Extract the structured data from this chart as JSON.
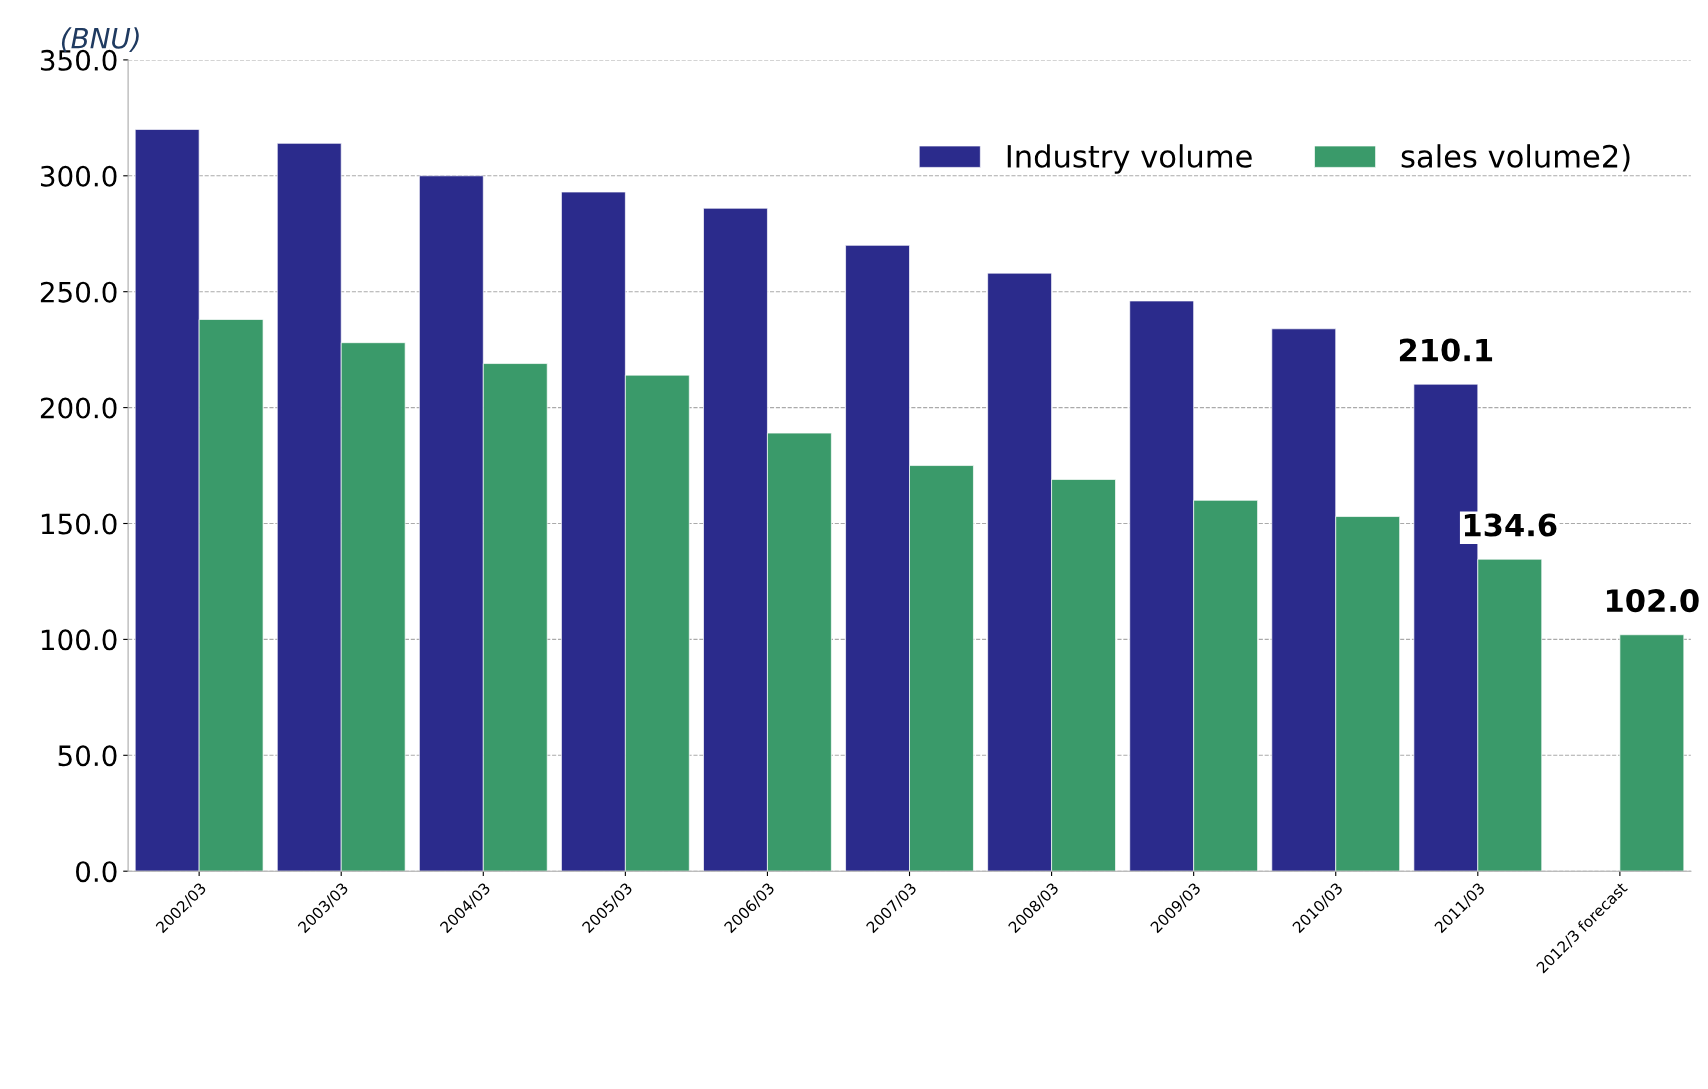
{
  "chart_data": {
    "type": "bar",
    "ylabel": "(BNU)",
    "categories": [
      "2002/03",
      "2003/03",
      "2004/03",
      "2005/03",
      "2006/03",
      "2007/03",
      "2008/03",
      "2009/03",
      "2010/03",
      "2011/03",
      "2012/3 forecast"
    ],
    "series": [
      {
        "name": "Industry volume",
        "color": "#2b2b8c",
        "values": [
          320,
          314,
          300,
          293,
          286,
          270,
          258,
          246,
          234,
          210.1,
          null
        ],
        "value_labels": [
          null,
          null,
          null,
          null,
          null,
          null,
          null,
          null,
          null,
          "210.1",
          null
        ]
      },
      {
        "name": "sales volume2)",
        "color": "#3a9a6a",
        "values": [
          238,
          228,
          219,
          214,
          189,
          175,
          169,
          160,
          153,
          134.6,
          102.0
        ],
        "value_labels": [
          null,
          null,
          null,
          null,
          null,
          null,
          null,
          null,
          null,
          "134.6",
          "102.0"
        ]
      }
    ],
    "ylim": [
      0,
      350
    ],
    "yticks": [
      {
        "value": 0,
        "label": "0.0"
      },
      {
        "value": 50,
        "label": "50.0"
      },
      {
        "value": 100,
        "label": "100.0"
      },
      {
        "value": 150,
        "label": "150.0"
      },
      {
        "value": 200,
        "label": "200.0"
      },
      {
        "value": 250,
        "label": "250.0"
      },
      {
        "value": 300,
        "label": "300.0"
      },
      {
        "value": 350,
        "label": "350.0"
      }
    ],
    "grid": "y",
    "legend": "top right"
  }
}
